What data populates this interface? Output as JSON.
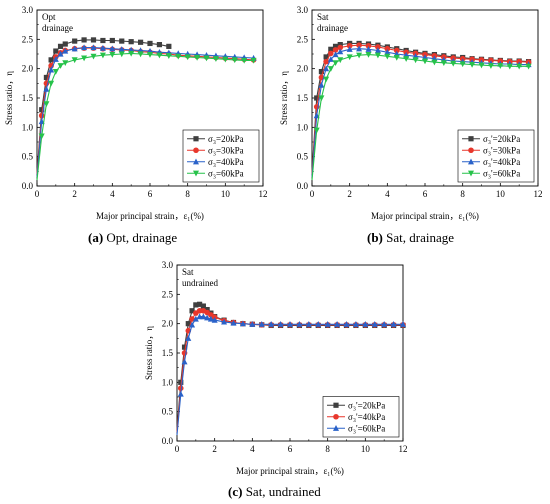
{
  "captions": {
    "a": {
      "label": "(a)",
      "text": " Opt, drainage"
    },
    "b": {
      "label": "(b)",
      "text": " Sat, drainage"
    },
    "c": {
      "label": "(c)",
      "text": " Sat, undrained"
    }
  },
  "colors": {
    "s20": "#3f3f3f",
    "s30": "#e8372c",
    "s40": "#2a62c9",
    "s60": "#26c24a"
  },
  "chart_data": [
    {
      "type": "line",
      "id": "a",
      "annotation": [
        "Opt",
        "drainage"
      ],
      "xlabel": "Major principal strain，ε₁(%)",
      "ylabel": "Stress ratio，η",
      "xlim": [
        0,
        12
      ],
      "ylim": [
        0,
        3.0
      ],
      "xticks": [
        "0",
        "2",
        "4",
        "6",
        "8",
        "10",
        "12"
      ],
      "yticks": [
        "0.0",
        "0.5",
        "1.0",
        "1.5",
        "2.0",
        "2.5",
        "3.0"
      ],
      "legend_position": "bottom-right",
      "series": [
        {
          "name": "σ₃=20kPa",
          "key": "s20",
          "marker": "square",
          "x": [
            0,
            0.25,
            0.5,
            0.75,
            1.0,
            1.25,
            1.5,
            2.0,
            2.5,
            3.0,
            3.5,
            4.0,
            4.5,
            5.0,
            5.5,
            6.0,
            6.5,
            7.0
          ],
          "y": [
            0.2,
            1.3,
            1.85,
            2.15,
            2.3,
            2.38,
            2.42,
            2.47,
            2.49,
            2.49,
            2.48,
            2.48,
            2.47,
            2.46,
            2.45,
            2.43,
            2.41,
            2.38
          ]
        },
        {
          "name": "σ₃=30kPa",
          "key": "s30",
          "marker": "circle",
          "x": [
            0,
            0.25,
            0.5,
            0.75,
            1.0,
            1.25,
            1.5,
            2.0,
            2.5,
            3.0,
            3.5,
            4.0,
            4.5,
            5.0,
            5.5,
            6.0,
            6.5,
            7.0,
            7.5,
            8.0,
            8.5,
            9.0,
            9.5,
            10.0,
            10.5,
            11.0,
            11.5
          ],
          "y": [
            0.2,
            1.2,
            1.75,
            2.05,
            2.2,
            2.27,
            2.31,
            2.34,
            2.35,
            2.35,
            2.34,
            2.33,
            2.32,
            2.31,
            2.29,
            2.28,
            2.26,
            2.25,
            2.23,
            2.22,
            2.21,
            2.2,
            2.19,
            2.18,
            2.17,
            2.16,
            2.15
          ]
        },
        {
          "name": "σ₃=40kPa",
          "key": "s40",
          "marker": "triangle",
          "x": [
            0,
            0.25,
            0.5,
            0.75,
            1.0,
            1.25,
            1.5,
            2.0,
            2.5,
            3.0,
            3.5,
            4.0,
            4.5,
            5.0,
            5.5,
            6.0,
            6.5,
            7.0,
            7.5,
            8.0,
            8.5,
            9.0,
            9.5,
            10.0,
            10.5,
            11.0,
            11.5
          ],
          "y": [
            0.15,
            1.1,
            1.65,
            1.98,
            2.16,
            2.25,
            2.3,
            2.34,
            2.36,
            2.36,
            2.35,
            2.34,
            2.33,
            2.32,
            2.31,
            2.3,
            2.28,
            2.27,
            2.26,
            2.25,
            2.24,
            2.23,
            2.22,
            2.21,
            2.2,
            2.19,
            2.18
          ]
        },
        {
          "name": "σ₃=60kPa",
          "key": "s60",
          "marker": "triangle-down",
          "x": [
            0,
            0.25,
            0.5,
            0.75,
            1.0,
            1.25,
            1.5,
            2.0,
            2.5,
            3.0,
            3.5,
            4.0,
            4.5,
            5.0,
            5.5,
            6.0,
            6.5,
            7.0,
            7.5,
            8.0,
            8.5,
            9.0,
            9.5,
            10.0,
            10.5,
            11.0,
            11.5
          ],
          "y": [
            0.1,
            0.85,
            1.4,
            1.75,
            1.95,
            2.05,
            2.1,
            2.15,
            2.18,
            2.21,
            2.23,
            2.24,
            2.25,
            2.26,
            2.25,
            2.24,
            2.23,
            2.22,
            2.21,
            2.2,
            2.19,
            2.18,
            2.17,
            2.16,
            2.15,
            2.14,
            2.14
          ]
        }
      ]
    },
    {
      "type": "line",
      "id": "b",
      "annotation": [
        "Sat",
        "drainage"
      ],
      "xlabel": "Major principal strain，ε₁(%)",
      "ylabel": "Stress ratio，η",
      "xlim": [
        0,
        12
      ],
      "ylim": [
        0,
        3.0
      ],
      "xticks": [
        "0",
        "2",
        "4",
        "6",
        "8",
        "10",
        "12"
      ],
      "yticks": [
        "0.0",
        "0.5",
        "1.0",
        "1.5",
        "2.0",
        "2.5",
        "3.0"
      ],
      "legend_position": "bottom-right",
      "series": [
        {
          "name": "σ₃'=20kPa",
          "key": "s20",
          "marker": "square",
          "x": [
            0,
            0.25,
            0.5,
            0.75,
            1.0,
            1.25,
            1.5,
            2.0,
            2.5,
            3.0,
            3.5,
            4.0,
            4.5,
            5.0,
            5.5,
            6.0,
            6.5,
            7.0,
            7.5,
            8.0,
            8.5,
            9.0,
            9.5,
            10.0,
            10.5,
            11.0,
            11.5
          ],
          "y": [
            0.2,
            1.5,
            1.95,
            2.2,
            2.33,
            2.38,
            2.41,
            2.43,
            2.43,
            2.42,
            2.4,
            2.37,
            2.34,
            2.31,
            2.28,
            2.26,
            2.24,
            2.22,
            2.2,
            2.19,
            2.17,
            2.16,
            2.15,
            2.14,
            2.13,
            2.13,
            2.12
          ]
        },
        {
          "name": "σ₃'=30kPa",
          "key": "s30",
          "marker": "circle",
          "x": [
            0,
            0.25,
            0.5,
            0.75,
            1.0,
            1.25,
            1.5,
            2.0,
            2.5,
            3.0,
            3.5,
            4.0,
            4.5,
            5.0,
            5.5,
            6.0,
            6.5,
            7.0,
            7.5,
            8.0,
            8.5,
            9.0,
            9.5,
            10.0,
            10.5,
            11.0,
            11.5
          ],
          "y": [
            0.2,
            1.35,
            1.85,
            2.12,
            2.26,
            2.32,
            2.36,
            2.39,
            2.4,
            2.39,
            2.37,
            2.34,
            2.31,
            2.28,
            2.26,
            2.24,
            2.22,
            2.2,
            2.18,
            2.17,
            2.16,
            2.15,
            2.14,
            2.13,
            2.12,
            2.12,
            2.11
          ]
        },
        {
          "name": "σ₃'=40kPa",
          "key": "s40",
          "marker": "triangle",
          "x": [
            0,
            0.25,
            0.5,
            0.75,
            1.0,
            1.25,
            1.5,
            2.0,
            2.5,
            3.0,
            3.5,
            4.0,
            4.5,
            5.0,
            5.5,
            6.0,
            6.5,
            7.0,
            7.5,
            8.0,
            8.5,
            9.0,
            9.5,
            10.0,
            10.5,
            11.0,
            11.5
          ],
          "y": [
            0.15,
            1.2,
            1.72,
            2.0,
            2.16,
            2.24,
            2.29,
            2.33,
            2.34,
            2.33,
            2.31,
            2.28,
            2.25,
            2.23,
            2.21,
            2.19,
            2.17,
            2.15,
            2.13,
            2.12,
            2.11,
            2.1,
            2.09,
            2.08,
            2.08,
            2.07,
            2.07
          ]
        },
        {
          "name": "σ₃'=60kPa",
          "key": "s60",
          "marker": "triangle-down",
          "x": [
            0,
            0.25,
            0.5,
            0.75,
            1.0,
            1.25,
            1.5,
            2.0,
            2.5,
            3.0,
            3.5,
            4.0,
            4.5,
            5.0,
            5.5,
            6.0,
            6.5,
            7.0,
            7.5,
            8.0,
            8.5,
            9.0,
            9.5,
            10.0,
            10.5,
            11.0,
            11.5
          ],
          "y": [
            0.1,
            0.95,
            1.5,
            1.82,
            2.0,
            2.1,
            2.15,
            2.2,
            2.23,
            2.24,
            2.23,
            2.21,
            2.19,
            2.17,
            2.15,
            2.13,
            2.11,
            2.1,
            2.09,
            2.08,
            2.07,
            2.06,
            2.05,
            2.05,
            2.04,
            2.04,
            2.04
          ]
        }
      ]
    },
    {
      "type": "line",
      "id": "c",
      "annotation": [
        "Sat",
        "undrained"
      ],
      "xlabel": "Major principal strain，ε₁(%)",
      "ylabel": "Stress ratio，η",
      "xlim": [
        0,
        12
      ],
      "ylim": [
        0,
        3.0
      ],
      "xticks": [
        "0",
        "2",
        "4",
        "6",
        "8",
        "10",
        "12"
      ],
      "yticks": [
        "0.0",
        "0.5",
        "1.0",
        "1.5",
        "2.0",
        "2.5",
        "3.0"
      ],
      "legend_position": "bottom-right",
      "series": [
        {
          "name": "σ₃'=20kPa",
          "key": "s20",
          "marker": "square",
          "x": [
            0,
            0.2,
            0.4,
            0.6,
            0.8,
            1.0,
            1.2,
            1.4,
            1.6,
            1.8,
            2.0,
            2.5,
            3.0,
            3.5,
            4.0,
            4.5,
            5.0,
            5.5,
            6.0,
            6.5,
            7.0,
            7.5,
            8.0,
            8.5,
            9.0,
            9.5,
            10.0,
            10.5,
            11.0,
            11.5,
            12.0
          ],
          "y": [
            0.2,
            1.0,
            1.6,
            2.0,
            2.22,
            2.32,
            2.33,
            2.3,
            2.24,
            2.18,
            2.12,
            2.06,
            2.02,
            2.0,
            1.99,
            1.98,
            1.97,
            1.97,
            1.97,
            1.97,
            1.97,
            1.97,
            1.97,
            1.97,
            1.97,
            1.97,
            1.97,
            1.97,
            1.97,
            1.97,
            1.97
          ]
        },
        {
          "name": "σ₃'=40kPa",
          "key": "s30",
          "marker": "circle",
          "x": [
            0,
            0.2,
            0.4,
            0.6,
            0.8,
            1.0,
            1.2,
            1.4,
            1.6,
            1.8,
            2.0,
            2.5,
            3.0,
            3.5,
            4.0,
            4.5,
            5.0,
            5.5,
            6.0,
            6.5,
            7.0,
            7.5,
            8.0,
            8.5,
            9.0,
            9.5,
            10.0,
            10.5,
            11.0,
            11.5,
            12.0
          ],
          "y": [
            0.15,
            0.9,
            1.5,
            1.88,
            2.08,
            2.18,
            2.22,
            2.22,
            2.19,
            2.15,
            2.11,
            2.05,
            2.02,
            2.0,
            1.99,
            1.98,
            1.98,
            1.98,
            1.98,
            1.98,
            1.98,
            1.98,
            1.98,
            1.98,
            1.98,
            1.98,
            1.98,
            1.98,
            1.98,
            1.98,
            1.98
          ]
        },
        {
          "name": "σ₃'=60kPa",
          "key": "s40",
          "marker": "triangle",
          "x": [
            0,
            0.2,
            0.4,
            0.6,
            0.8,
            1.0,
            1.2,
            1.4,
            1.6,
            1.8,
            2.0,
            2.5,
            3.0,
            3.5,
            4.0,
            4.5,
            5.0,
            5.5,
            6.0,
            6.5,
            7.0,
            7.5,
            8.0,
            8.5,
            9.0,
            9.5,
            10.0,
            10.5,
            11.0,
            11.5,
            12.0
          ],
          "y": [
            0.1,
            0.8,
            1.35,
            1.75,
            1.98,
            2.08,
            2.12,
            2.12,
            2.1,
            2.08,
            2.06,
            2.03,
            2.01,
            2.0,
            1.99,
            1.99,
            1.99,
            1.99,
            1.99,
            1.99,
            1.99,
            1.99,
            1.99,
            1.99,
            1.99,
            1.99,
            1.99,
            1.99,
            1.99,
            1.99,
            1.99
          ]
        }
      ]
    }
  ]
}
